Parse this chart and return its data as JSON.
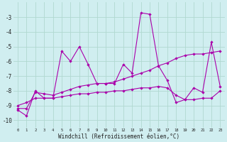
{
  "xlabel": "Windchill (Refroidissement éolien,°C)",
  "background_color": "#d0eef0",
  "grid_color": "#b0d8d0",
  "line_color": "#aa00aa",
  "x_hours": [
    0,
    1,
    2,
    3,
    4,
    5,
    6,
    7,
    8,
    9,
    10,
    11,
    12,
    13,
    14,
    15,
    16,
    17,
    18,
    19,
    20,
    21,
    22,
    23
  ],
  "y_main": [
    -9.3,
    -9.7,
    -8.0,
    -8.5,
    -8.5,
    -5.3,
    -6.0,
    -5.0,
    -6.2,
    -7.5,
    -7.5,
    -7.5,
    -6.2,
    -6.8,
    -2.7,
    -2.8,
    -6.3,
    -7.3,
    -8.8,
    -8.6,
    -7.8,
    -8.1,
    -4.7,
    -7.7
  ],
  "y_trend1": [
    -9.2,
    -9.2,
    -8.1,
    -8.2,
    -8.3,
    -8.1,
    -7.9,
    -7.7,
    -7.6,
    -7.5,
    -7.5,
    -7.4,
    -7.2,
    -7.0,
    -6.8,
    -6.6,
    -6.3,
    -6.1,
    -5.8,
    -5.6,
    -5.5,
    -5.5,
    -5.4,
    -5.3
  ],
  "y_trend2": [
    -9.0,
    -8.8,
    -8.5,
    -8.5,
    -8.5,
    -8.4,
    -8.3,
    -8.2,
    -8.2,
    -8.1,
    -8.1,
    -8.0,
    -8.0,
    -7.9,
    -7.8,
    -7.8,
    -7.7,
    -7.8,
    -8.3,
    -8.6,
    -8.6,
    -8.5,
    -8.5,
    -8.0
  ],
  "ylim": [
    -10.5,
    -2.0
  ],
  "xlim": [
    -0.5,
    23.5
  ],
  "yticks": [
    -10,
    -9,
    -8,
    -7,
    -6,
    -5,
    -4,
    -3
  ],
  "xtick_labels": [
    "0",
    "1",
    "2",
    "3",
    "4",
    "5",
    "6",
    "7",
    "8",
    "9",
    "10",
    "11",
    "12",
    "13",
    "14",
    "15",
    "16",
    "17",
    "18",
    "19",
    "20",
    "21",
    "22",
    "23"
  ]
}
